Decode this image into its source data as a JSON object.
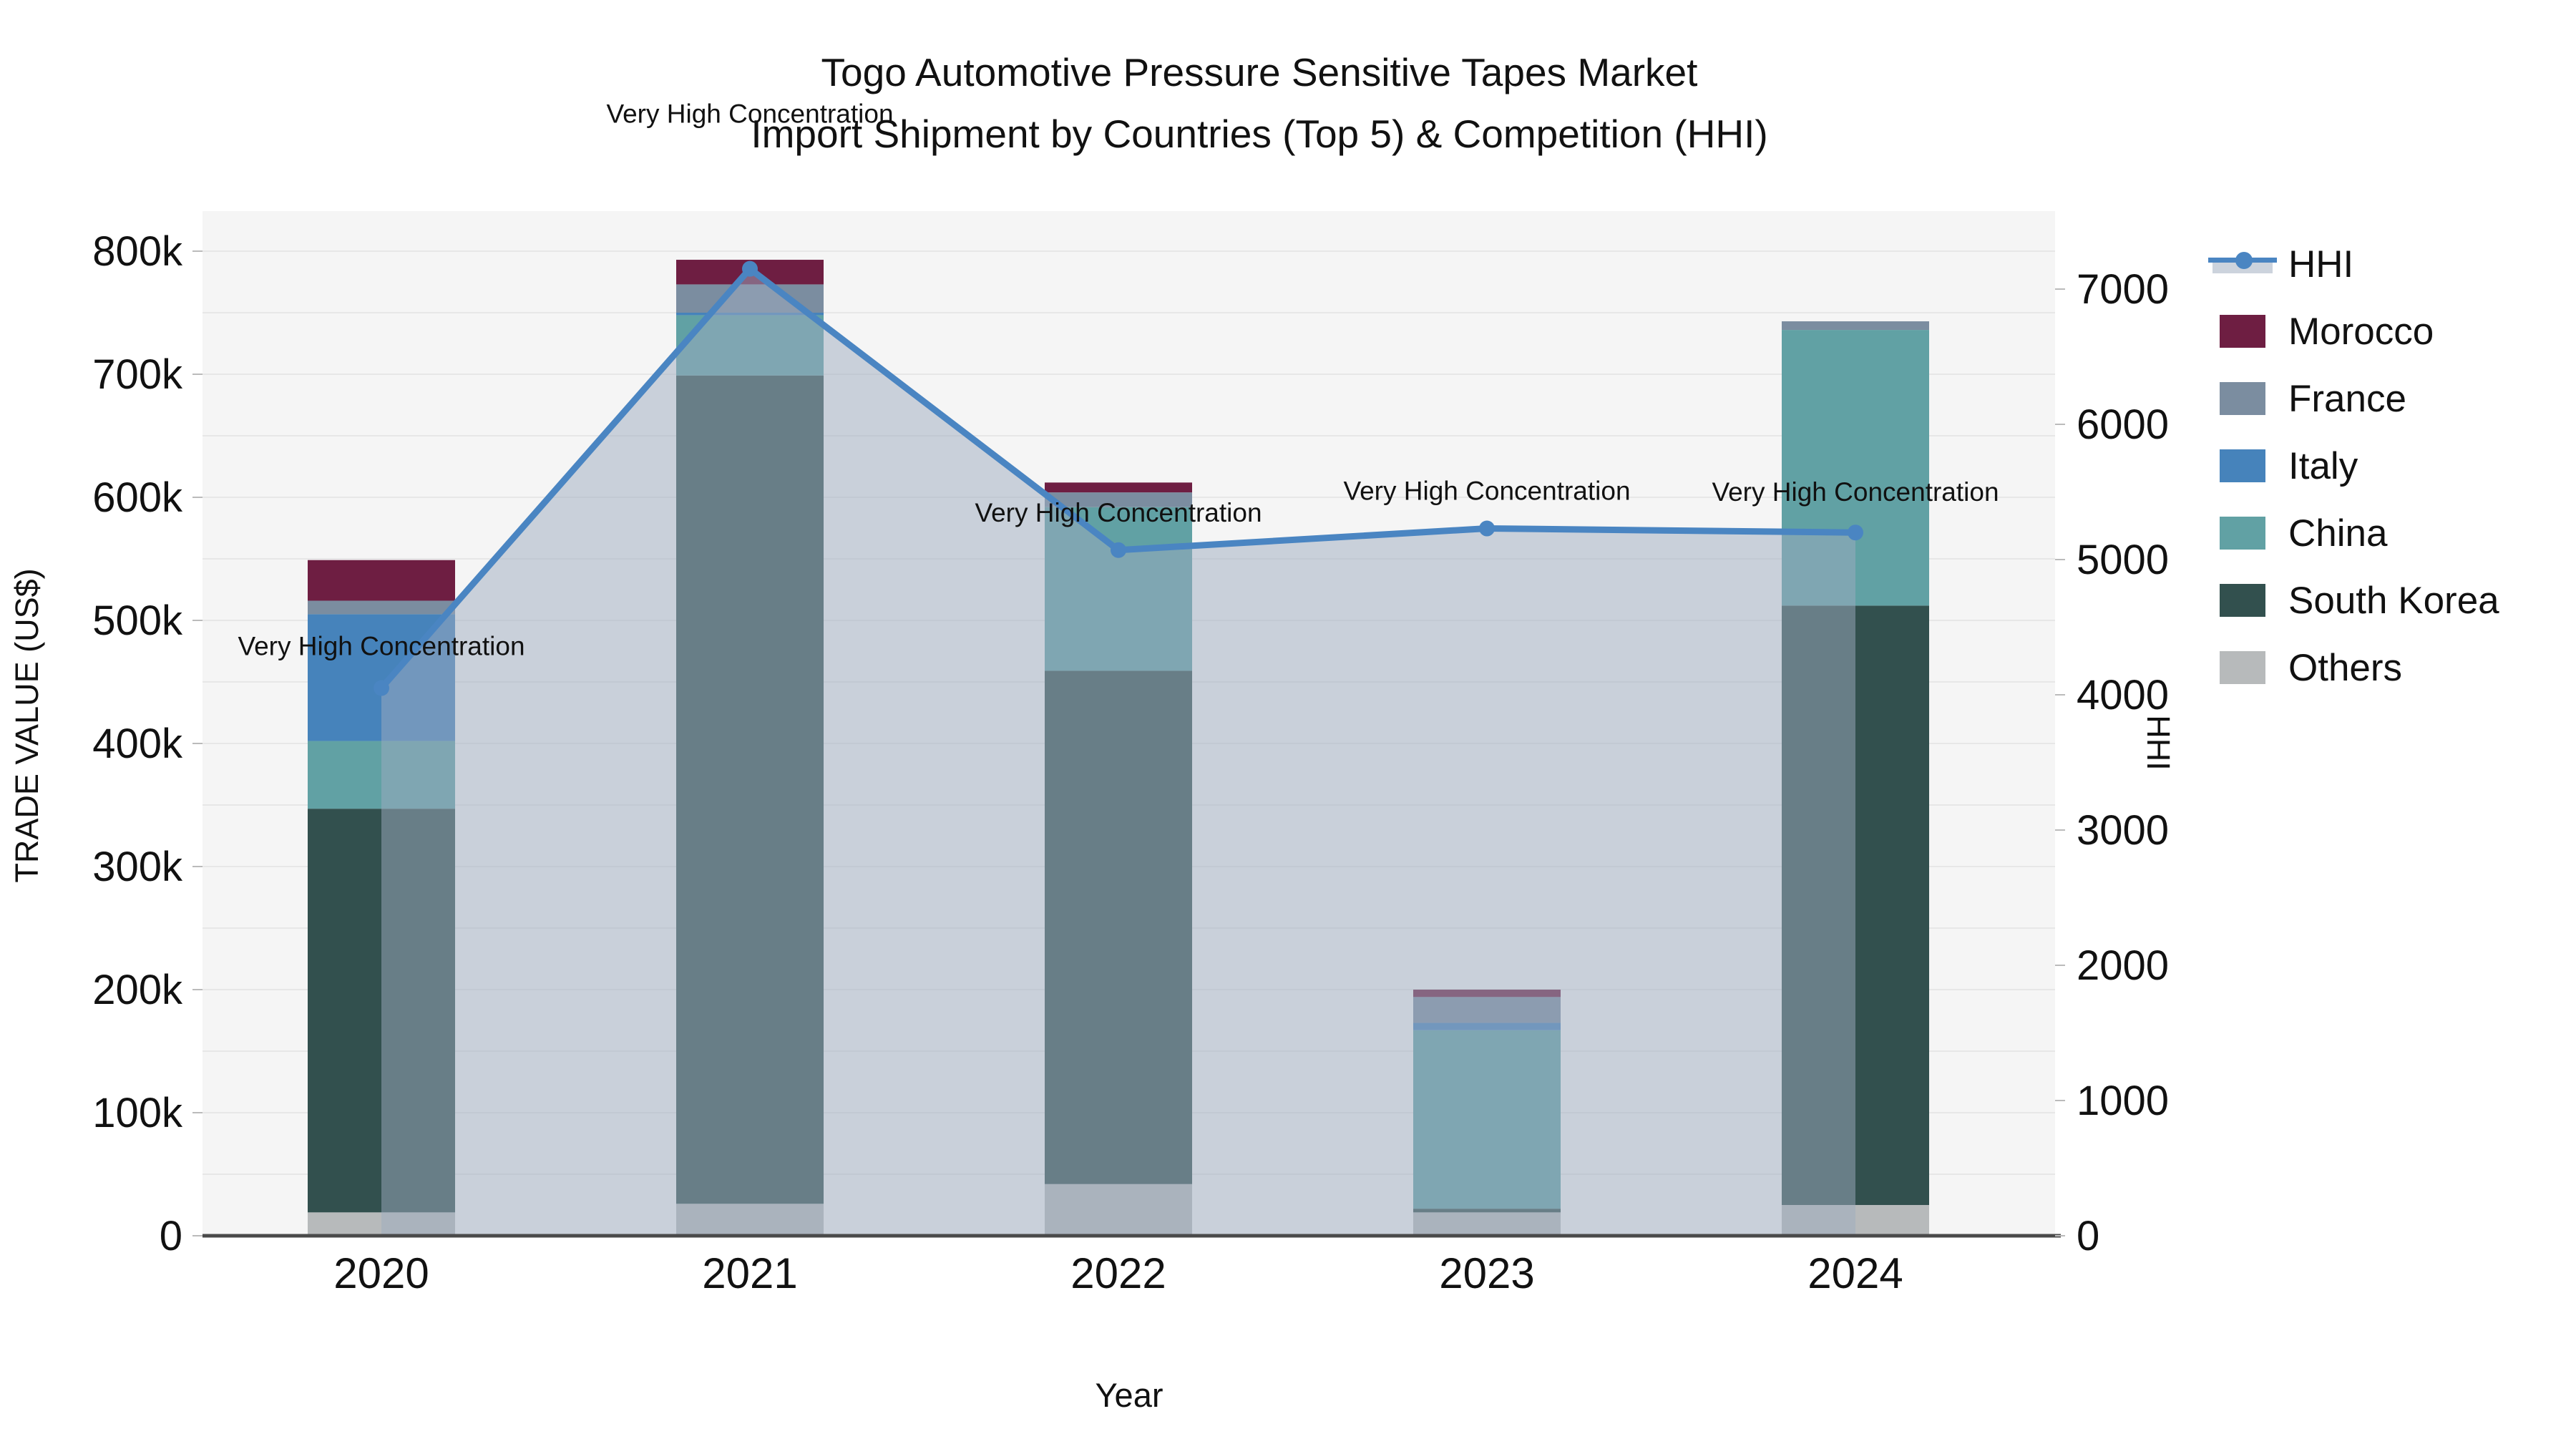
{
  "title": {
    "line1": "Togo Automotive Pressure Sensitive Tapes Market",
    "line2": "Import Shipment by Countries (Top 5) & Competition (HHI)"
  },
  "chart_data": {
    "type": "bar",
    "subtype": "stacked-bars-with-line-overlay",
    "categories": [
      "2020",
      "2021",
      "2022",
      "2023",
      "2024"
    ],
    "series": [
      {
        "name": "Others",
        "color": "#b7babb",
        "values": [
          19000,
          26000,
          42000,
          19000,
          25000
        ]
      },
      {
        "name": "South Korea",
        "color": "#32504e",
        "values": [
          328000,
          673000,
          417000,
          3000,
          487000
        ]
      },
      {
        "name": "China",
        "color": "#61a1a4",
        "values": [
          55000,
          49000,
          133000,
          145000,
          224000
        ]
      },
      {
        "name": "Italy",
        "color": "#4683bb",
        "values": [
          103000,
          2000,
          0,
          6000,
          0
        ]
      },
      {
        "name": "France",
        "color": "#7b8da0",
        "values": [
          11000,
          23000,
          12000,
          21000,
          7000
        ]
      },
      {
        "name": "Morocco",
        "color": "#6e1e42",
        "values": [
          33000,
          20000,
          8000,
          6000,
          0
        ]
      }
    ],
    "line_series": {
      "name": "HHI",
      "color": "#4a85c2",
      "fill_color": "#9dabc0",
      "values": [
        4050,
        7150,
        5070,
        5230,
        5200
      ]
    },
    "annotations": [
      {
        "year": "2020",
        "text": "Very High Concentration"
      },
      {
        "year": "2021",
        "text": "Very High Concentration"
      },
      {
        "year": "2022",
        "text": "Very High Concentration"
      },
      {
        "year": "2023",
        "text": "Very High Concentration"
      },
      {
        "year": "2024",
        "text": "Very High Concentration"
      }
    ],
    "left_axis": {
      "label": "TRADE VALUE (US$)",
      "tick_labels": [
        "0",
        "100k",
        "200k",
        "300k",
        "400k",
        "500k",
        "600k",
        "700k",
        "800k"
      ],
      "tick_values": [
        0,
        100000,
        200000,
        300000,
        400000,
        500000,
        600000,
        700000,
        800000
      ]
    },
    "right_axis": {
      "label": "HHI",
      "tick_labels": [
        "0",
        "1000",
        "2000",
        "3000",
        "4000",
        "5000",
        "6000",
        "7000"
      ],
      "tick_values": [
        0,
        1000,
        2000,
        3000,
        4000,
        5000,
        6000,
        7000
      ]
    },
    "xlabel": "Year",
    "grid": true,
    "legend_position": "right"
  },
  "legend": {
    "items": [
      {
        "label": "HHI",
        "type": "line",
        "color": "#4a85c2"
      },
      {
        "label": "Morocco",
        "type": "box",
        "color": "#6e1e42"
      },
      {
        "label": "France",
        "type": "box",
        "color": "#7b8da0"
      },
      {
        "label": "Italy",
        "type": "box",
        "color": "#4683bb"
      },
      {
        "label": "China",
        "type": "box",
        "color": "#61a1a4"
      },
      {
        "label": "South Korea",
        "type": "box",
        "color": "#32504e"
      },
      {
        "label": "Others",
        "type": "box",
        "color": "#b7babb"
      }
    ]
  }
}
